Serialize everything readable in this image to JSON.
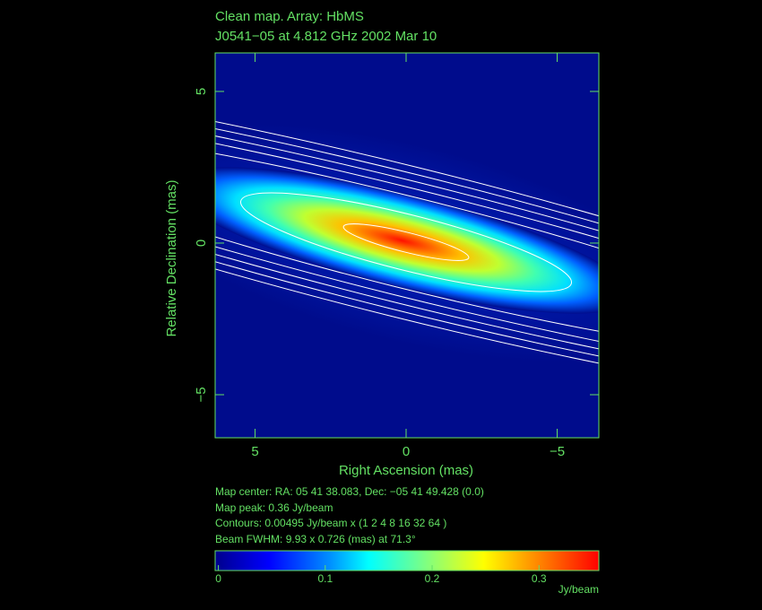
{
  "chart_data": {
    "type": "image",
    "title": "Clean map.  Array: HbMS",
    "subtitle": "J0541−05 at 4.812 GHz 2002 Mar 10",
    "x_label": "Right Ascension  (mas)",
    "y_label": "Relative Declination  (mas)",
    "xlim": [
      6.32,
      -6.38
    ],
    "ylim": [
      -6.42,
      6.27
    ],
    "xticks": [
      5,
      0,
      {
        "value": -5,
        "label": "−5"
      }
    ],
    "yticks": [
      {
        "value": -5,
        "label": "−5"
      },
      0,
      5
    ],
    "map_center": "Map center:  RA: 05 41 38.083,  Dec: −05 41 49.428 (0.0)",
    "peak": {
      "label": "Map peak:",
      "value": 0.36,
      "unit": "Jy/beam"
    },
    "contours": {
      "label": "Contours:",
      "base": 0.00495,
      "unit": "Jy/beam x",
      "open": "(",
      "levels": [
        1,
        2,
        4,
        8,
        16,
        32,
        64
      ],
      "close": ")"
    },
    "beam": {
      "label": "Beam FWHM:",
      "major": 9.93,
      "sep": "x",
      "minor": 0.726,
      "unit": "(mas) at",
      "pa": 71.3,
      "deg": "°"
    },
    "colorbar": {
      "lim": [
        -0.003,
        0.356
      ],
      "ticks": [
        0,
        0.1,
        0.2,
        0.3
      ],
      "label": "Jy/beam"
    }
  }
}
